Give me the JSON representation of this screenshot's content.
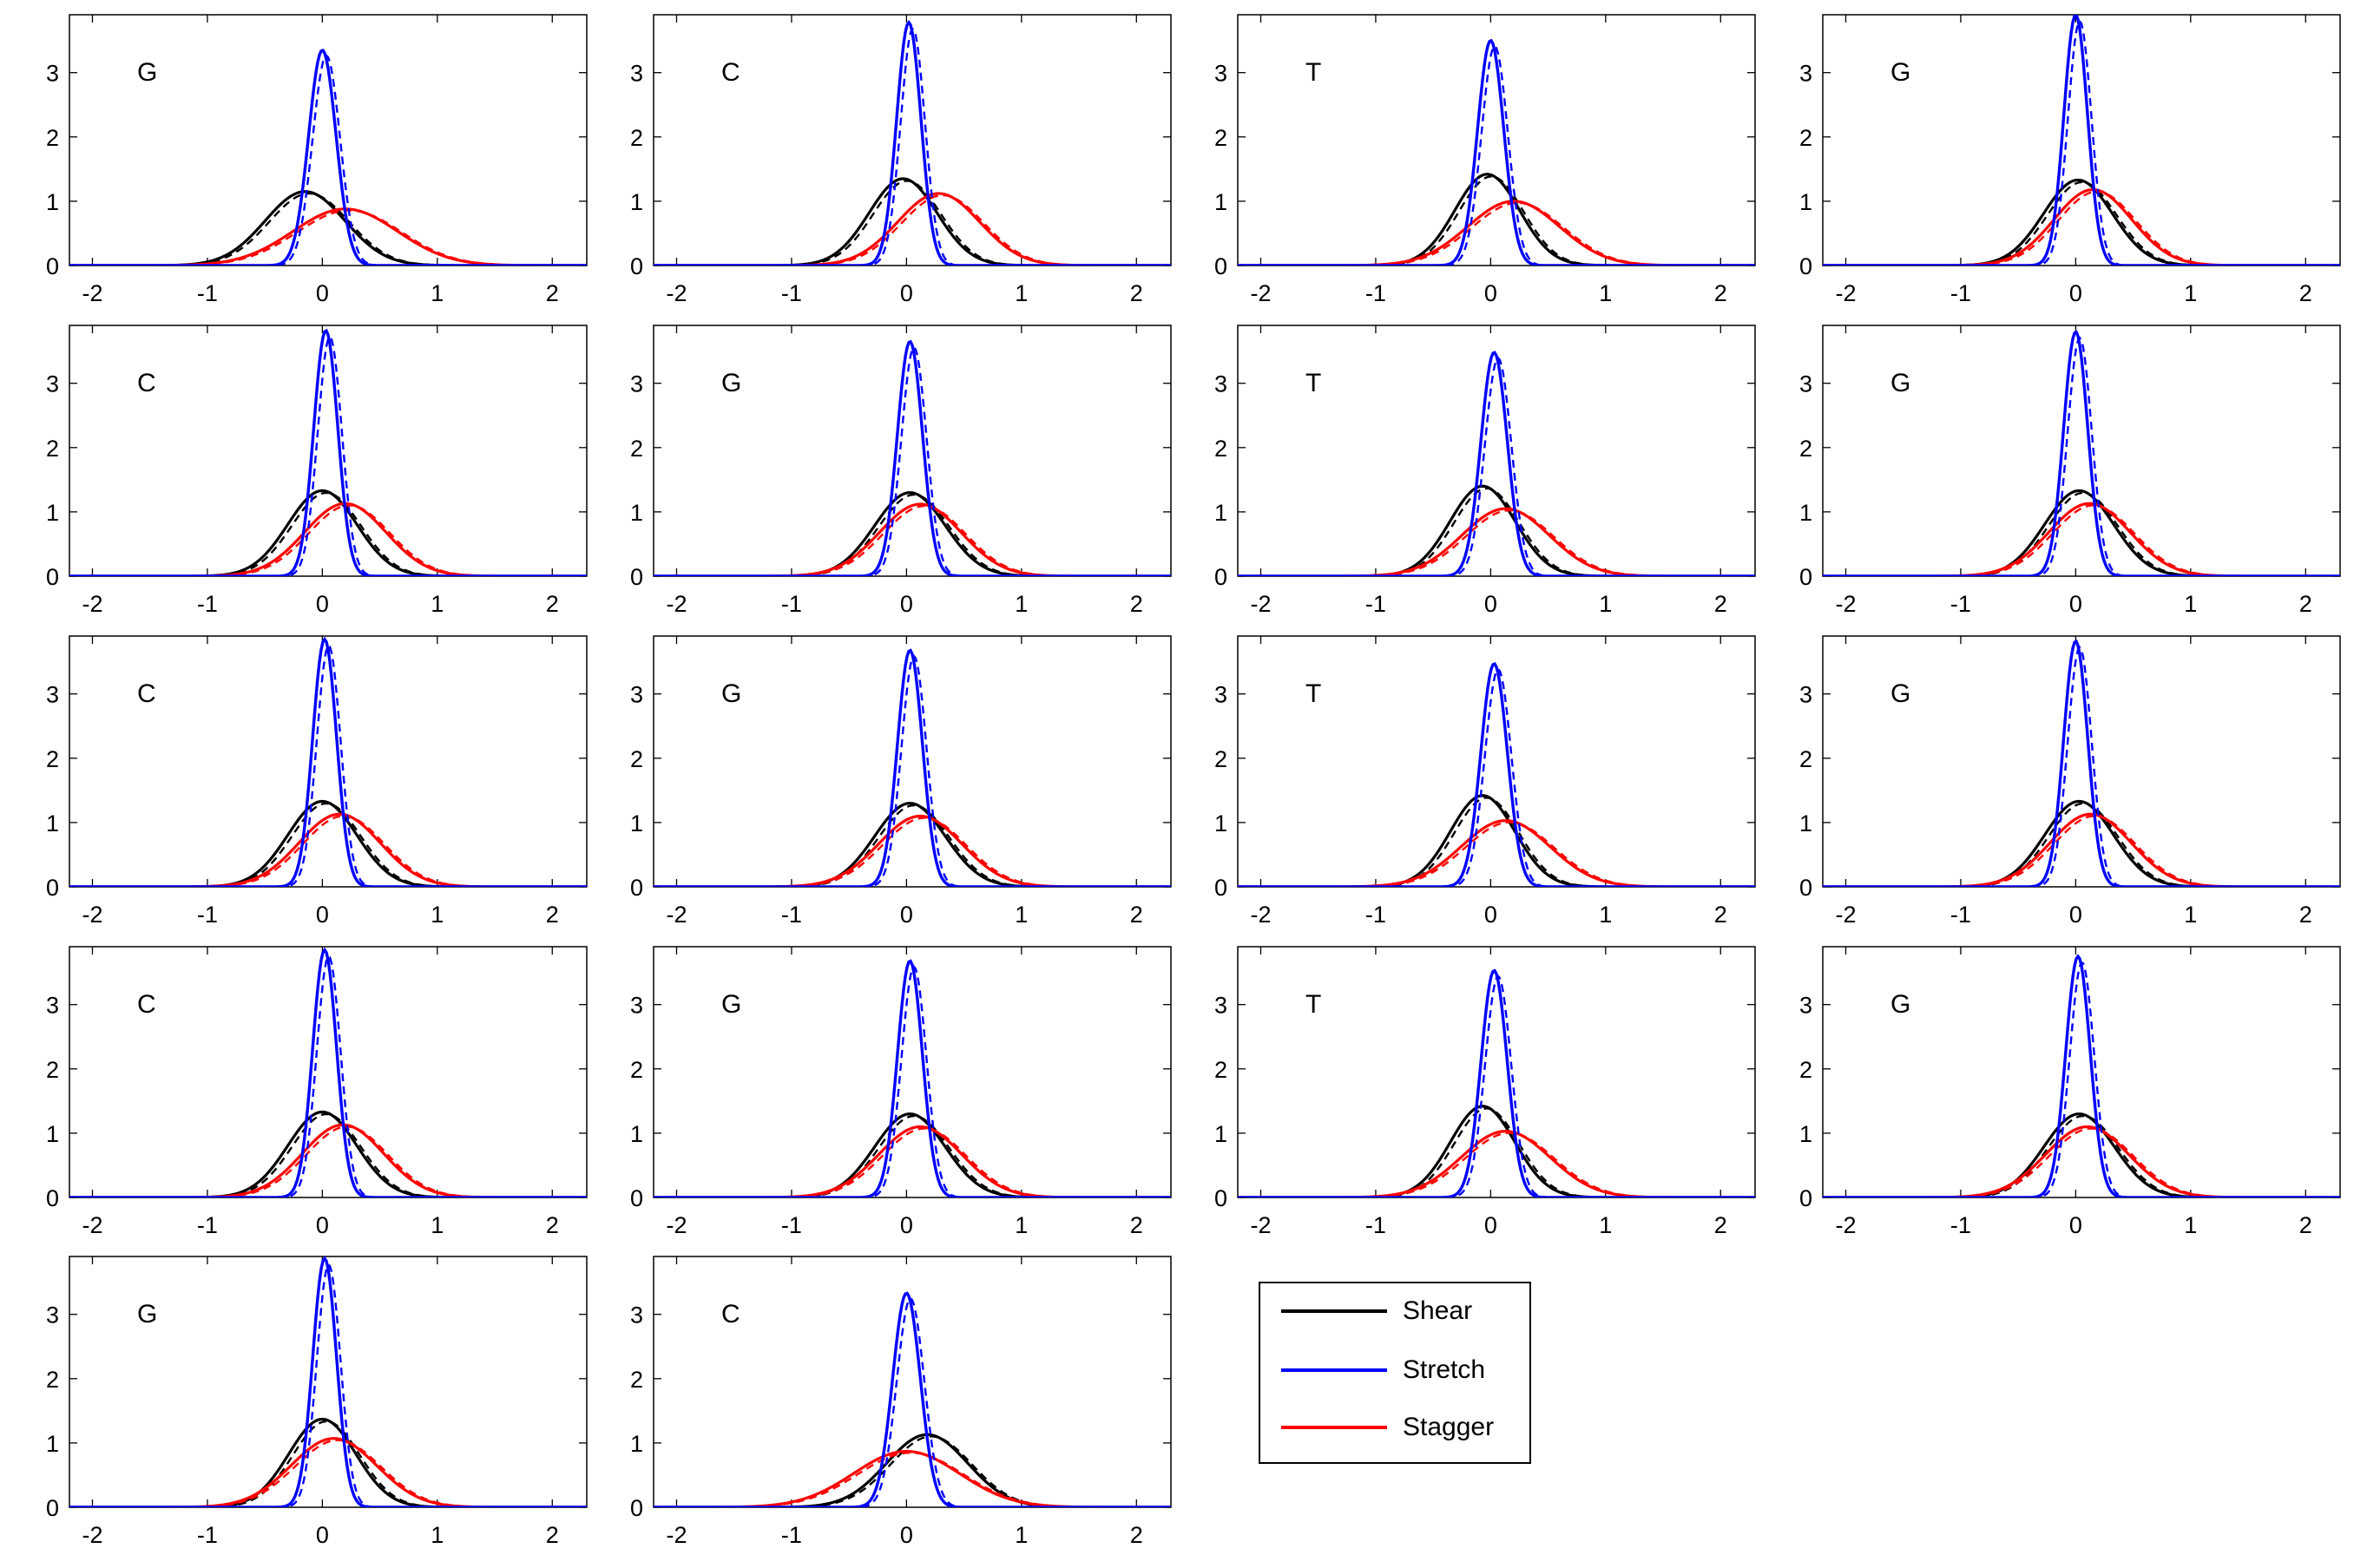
{
  "chart_data": {
    "type": "line",
    "xlim": [
      -2.2,
      2.3
    ],
    "ylim": [
      0,
      3.9
    ],
    "xticks": [
      -2,
      -1,
      0,
      1,
      2
    ],
    "yticks": [
      0,
      1,
      2,
      3
    ],
    "xtick_labels": [
      "-2",
      "-1",
      "0",
      "1",
      "2"
    ],
    "ytick_labels": [
      "0",
      "1",
      "2",
      "3"
    ],
    "grid": false,
    "legend_placement": "bottom-right",
    "legend": [
      {
        "name": "Shear",
        "color": "#000000"
      },
      {
        "name": "Stretch",
        "color": "#0000ff"
      },
      {
        "name": "Stagger",
        "color": "#ff0000"
      }
    ],
    "curve_form": "gaussian",
    "panels": [
      {
        "label": "G",
        "shear": {
          "mean": -0.15,
          "peak": 1.15
        },
        "stretch": {
          "mean": 0.0,
          "peak": 3.35
        },
        "stagger": {
          "mean": 0.2,
          "peak": 0.88
        }
      },
      {
        "label": "C",
        "shear": {
          "mean": -0.03,
          "peak": 1.35
        },
        "stretch": {
          "mean": 0.02,
          "peak": 3.78
        },
        "stagger": {
          "mean": 0.28,
          "peak": 1.12
        }
      },
      {
        "label": "T",
        "shear": {
          "mean": -0.03,
          "peak": 1.42
        },
        "stretch": {
          "mean": 0.0,
          "peak": 3.5
        },
        "stagger": {
          "mean": 0.2,
          "peak": 1.0
        }
      },
      {
        "label": "G",
        "shear": {
          "mean": 0.02,
          "peak": 1.33
        },
        "stretch": {
          "mean": 0.0,
          "peak": 3.9
        },
        "stagger": {
          "mean": 0.15,
          "peak": 1.18
        }
      },
      {
        "label": "C",
        "shear": {
          "mean": 0.0,
          "peak": 1.33
        },
        "stretch": {
          "mean": 0.03,
          "peak": 3.82
        },
        "stagger": {
          "mean": 0.2,
          "peak": 1.13
        }
      },
      {
        "label": "G",
        "shear": {
          "mean": 0.03,
          "peak": 1.3
        },
        "stretch": {
          "mean": 0.03,
          "peak": 3.65
        },
        "stagger": {
          "mean": 0.12,
          "peak": 1.12
        }
      },
      {
        "label": "T",
        "shear": {
          "mean": -0.07,
          "peak": 1.4
        },
        "stretch": {
          "mean": 0.03,
          "peak": 3.48
        },
        "stagger": {
          "mean": 0.13,
          "peak": 1.05
        }
      },
      {
        "label": "G",
        "shear": {
          "mean": 0.03,
          "peak": 1.33
        },
        "stretch": {
          "mean": 0.0,
          "peak": 3.8
        },
        "stagger": {
          "mean": 0.12,
          "peak": 1.13
        }
      },
      {
        "label": "C",
        "shear": {
          "mean": 0.0,
          "peak": 1.33
        },
        "stretch": {
          "mean": 0.02,
          "peak": 3.85
        },
        "stagger": {
          "mean": 0.15,
          "peak": 1.13
        }
      },
      {
        "label": "G",
        "shear": {
          "mean": 0.03,
          "peak": 1.3
        },
        "stretch": {
          "mean": 0.03,
          "peak": 3.68
        },
        "stagger": {
          "mean": 0.12,
          "peak": 1.1
        }
      },
      {
        "label": "T",
        "shear": {
          "mean": -0.07,
          "peak": 1.42
        },
        "stretch": {
          "mean": 0.03,
          "peak": 3.47
        },
        "stagger": {
          "mean": 0.13,
          "peak": 1.03
        }
      },
      {
        "label": "G",
        "shear": {
          "mean": 0.03,
          "peak": 1.33
        },
        "stretch": {
          "mean": 0.0,
          "peak": 3.82
        },
        "stagger": {
          "mean": 0.13,
          "peak": 1.13
        }
      },
      {
        "label": "C",
        "shear": {
          "mean": 0.0,
          "peak": 1.33
        },
        "stretch": {
          "mean": 0.02,
          "peak": 3.85
        },
        "stagger": {
          "mean": 0.18,
          "peak": 1.13
        }
      },
      {
        "label": "G",
        "shear": {
          "mean": 0.03,
          "peak": 1.3
        },
        "stretch": {
          "mean": 0.03,
          "peak": 3.68
        },
        "stagger": {
          "mean": 0.12,
          "peak": 1.1
        }
      },
      {
        "label": "T",
        "shear": {
          "mean": -0.07,
          "peak": 1.42
        },
        "stretch": {
          "mean": 0.03,
          "peak": 3.53
        },
        "stagger": {
          "mean": 0.13,
          "peak": 1.03
        }
      },
      {
        "label": "G",
        "shear": {
          "mean": 0.03,
          "peak": 1.3
        },
        "stretch": {
          "mean": 0.02,
          "peak": 3.75
        },
        "stagger": {
          "mean": 0.1,
          "peak": 1.1
        }
      },
      {
        "label": "G",
        "shear": {
          "mean": 0.0,
          "peak": 1.37
        },
        "stretch": {
          "mean": 0.02,
          "peak": 3.87
        },
        "stagger": {
          "mean": 0.1,
          "peak": 1.07
        }
      },
      {
        "label": "C",
        "shear": {
          "mean": 0.18,
          "peak": 1.13
        },
        "stretch": {
          "mean": 0.0,
          "peak": 3.33
        },
        "stagger": {
          "mean": 0.0,
          "peak": 0.87
        }
      }
    ]
  }
}
